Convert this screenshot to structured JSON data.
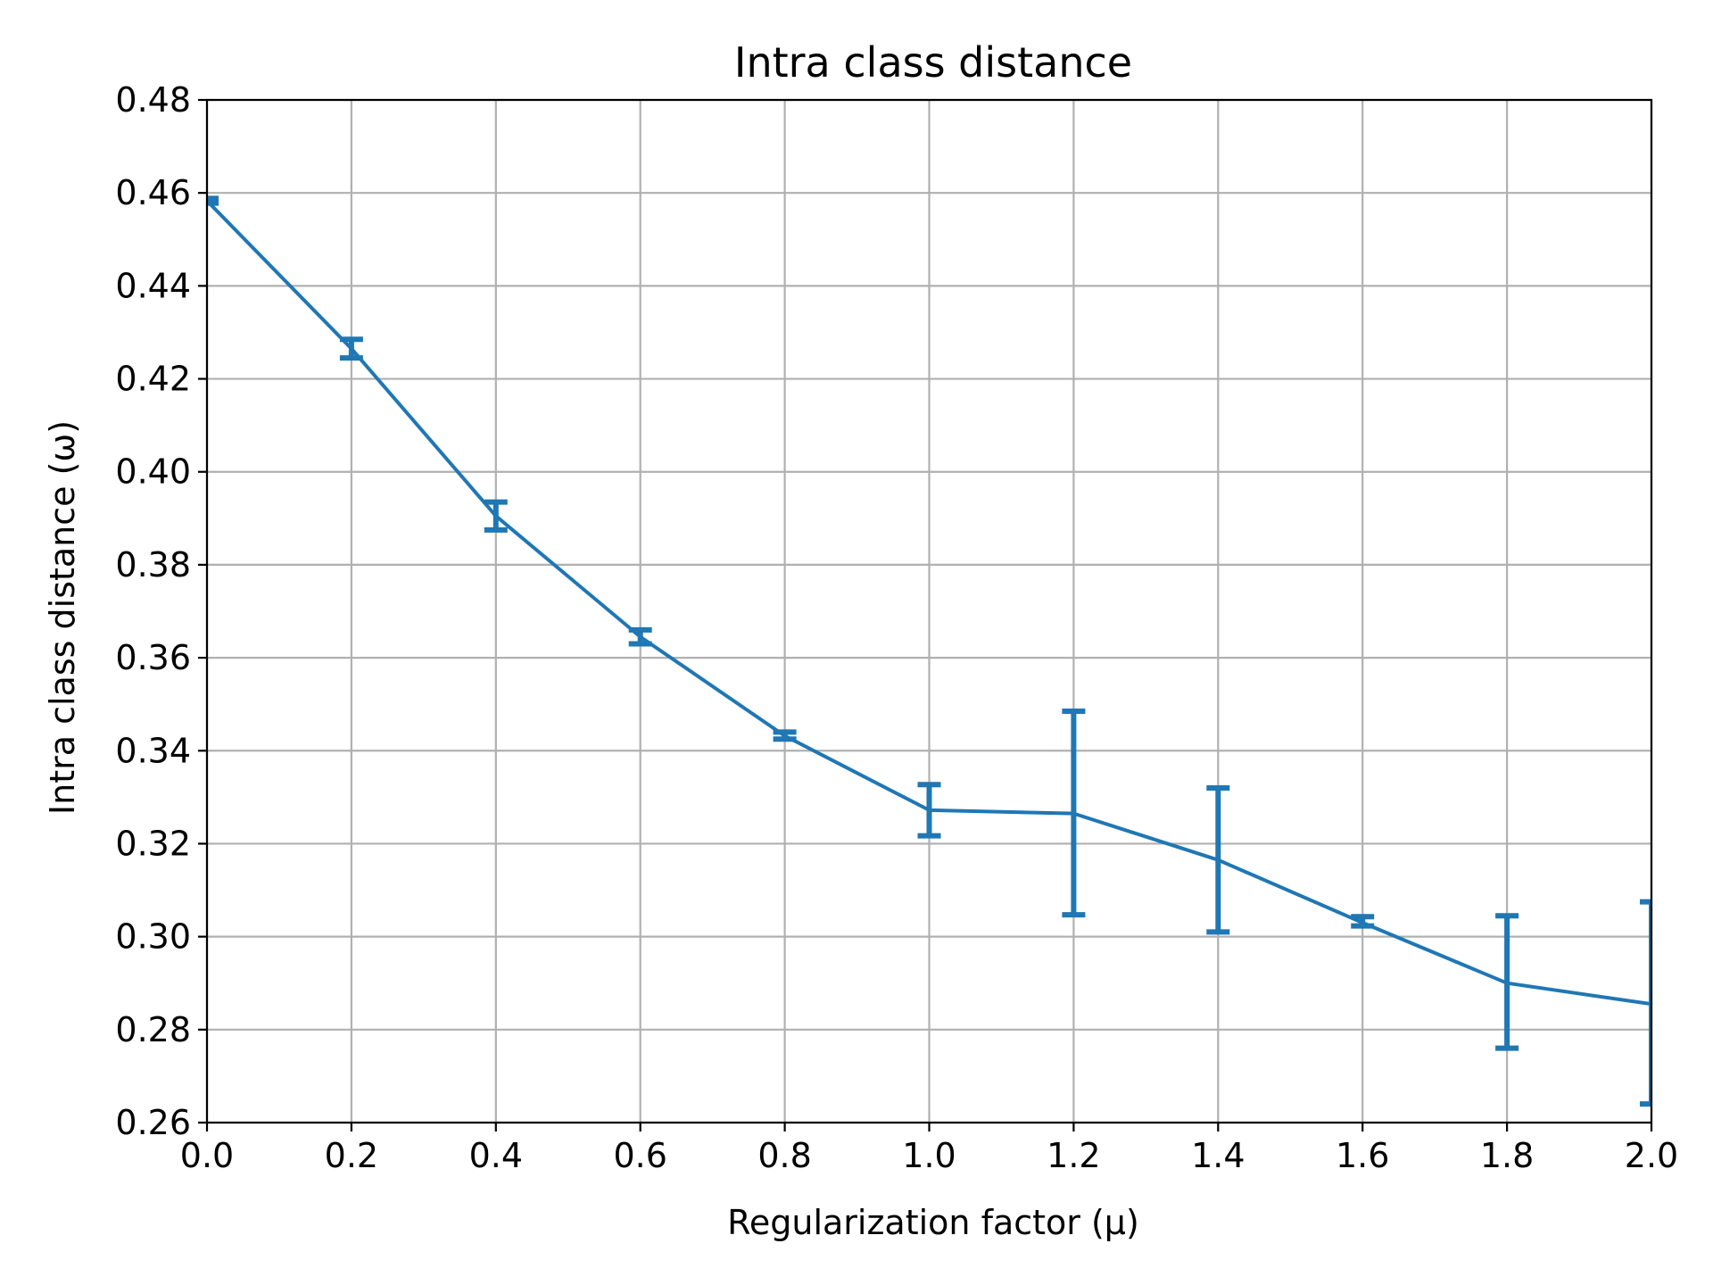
{
  "chart_data": {
    "type": "line",
    "title": "Intra class distance",
    "xlabel": "Regularization factor (μ)",
    "ylabel": "Intra class distance (ω)",
    "xlim": [
      0.0,
      2.0
    ],
    "ylim": [
      0.26,
      0.48
    ],
    "xticks": [
      "0.0",
      "0.2",
      "0.4",
      "0.6",
      "0.8",
      "1.0",
      "1.2",
      "1.4",
      "1.6",
      "1.8",
      "2.0"
    ],
    "yticks": [
      "0.26",
      "0.28",
      "0.30",
      "0.32",
      "0.34",
      "0.36",
      "0.38",
      "0.40",
      "0.42",
      "0.44",
      "0.46",
      "0.48"
    ],
    "grid": true,
    "series": [
      {
        "color": "#1f77b4",
        "x": [
          0.0,
          0.2,
          0.4,
          0.6,
          0.8,
          1.0,
          1.2,
          1.4,
          1.6,
          1.8,
          2.0
        ],
        "y": [
          0.4583,
          0.4265,
          0.3905,
          0.3645,
          0.3432,
          0.3272,
          0.3265,
          0.3165,
          0.303,
          0.29,
          0.2855
        ],
        "yerr_low": [
          0.4578,
          0.4245,
          0.3875,
          0.363,
          0.3425,
          0.3217,
          0.3047,
          0.301,
          0.3023,
          0.276,
          0.264
        ],
        "yerr_high": [
          0.4588,
          0.4285,
          0.3935,
          0.366,
          0.344,
          0.3327,
          0.3485,
          0.332,
          0.3043,
          0.3045,
          0.3075
        ]
      }
    ]
  }
}
